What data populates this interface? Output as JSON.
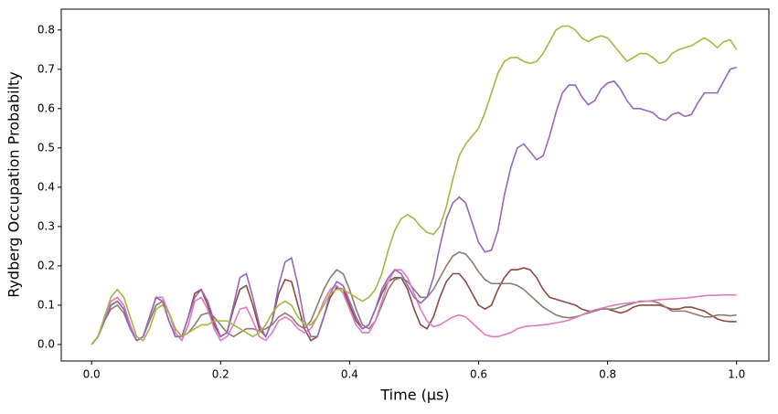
{
  "chart_data": {
    "type": "line",
    "x_label": "Time (μs)",
    "y_label": "Rydberg Occupation Probabilty",
    "xlim": [
      -0.047,
      1.05
    ],
    "ylim": [
      -0.042,
      0.853
    ],
    "xticks": [
      {
        "value": 0,
        "label": "0.0"
      },
      {
        "value": 0.2,
        "label": "0.2"
      },
      {
        "value": 0.4,
        "label": "0.4"
      },
      {
        "value": 0.6,
        "label": "0.6"
      },
      {
        "value": 0.8,
        "label": "0.8"
      },
      {
        "value": 1,
        "label": "1.0"
      }
    ],
    "yticks": [
      {
        "value": 0,
        "label": "0.0"
      },
      {
        "value": 0.1,
        "label": "0.1"
      },
      {
        "value": 0.2,
        "label": "0.2"
      },
      {
        "value": 0.3,
        "label": "0.3"
      },
      {
        "value": 0.4,
        "label": "0.4"
      },
      {
        "value": 0.5,
        "label": "0.5"
      },
      {
        "value": 0.6,
        "label": "0.6"
      },
      {
        "value": 0.7,
        "label": "0.7"
      },
      {
        "value": 0.8,
        "label": "0.8"
      }
    ],
    "grid": false,
    "x": [
      0,
      0.01,
      0.02,
      0.03,
      0.04,
      0.05,
      0.06,
      0.07,
      0.08,
      0.09,
      0.1,
      0.11,
      0.12,
      0.13,
      0.14,
      0.15,
      0.16,
      0.17,
      0.18,
      0.19,
      0.2,
      0.21,
      0.22,
      0.23,
      0.24,
      0.25,
      0.26,
      0.27,
      0.28,
      0.29,
      0.3,
      0.31,
      0.32,
      0.33,
      0.34,
      0.35,
      0.36,
      0.37,
      0.38,
      0.39,
      0.4,
      0.41,
      0.42,
      0.43,
      0.44,
      0.45,
      0.46,
      0.47,
      0.48,
      0.49,
      0.5,
      0.51,
      0.52,
      0.53,
      0.54,
      0.55,
      0.56,
      0.57,
      0.58,
      0.59,
      0.6,
      0.61,
      0.62,
      0.63,
      0.64,
      0.65,
      0.66,
      0.67,
      0.68,
      0.69,
      0.7,
      0.71,
      0.72,
      0.73,
      0.74,
      0.75,
      0.76,
      0.77,
      0.78,
      0.79,
      0.8,
      0.81,
      0.82,
      0.83,
      0.84,
      0.85,
      0.86,
      0.87,
      0.88,
      0.89,
      0.9,
      0.91,
      0.92,
      0.93,
      0.94,
      0.95,
      0.96,
      0.97,
      0.98,
      0.99,
      1.0
    ],
    "series": [
      {
        "color": "#8c4a3f",
        "values": [
          0,
          0.02,
          0.06,
          0.1,
          0.11,
          0.09,
          0.04,
          0.01,
          0.02,
          0.07,
          0.12,
          0.11,
          0.06,
          0.02,
          0.02,
          0.07,
          0.13,
          0.14,
          0.1,
          0.05,
          0.02,
          0.03,
          0.09,
          0.14,
          0.15,
          0.1,
          0.04,
          0.02,
          0.06,
          0.13,
          0.165,
          0.16,
          0.1,
          0.04,
          0.01,
          0.02,
          0.07,
          0.12,
          0.145,
          0.14,
          0.1,
          0.06,
          0.04,
          0.05,
          0.09,
          0.13,
          0.16,
          0.17,
          0.17,
          0.14,
          0.09,
          0.05,
          0.04,
          0.07,
          0.12,
          0.16,
          0.18,
          0.18,
          0.16,
          0.13,
          0.1,
          0.09,
          0.1,
          0.14,
          0.17,
          0.19,
          0.19,
          0.195,
          0.19,
          0.17,
          0.14,
          0.12,
          0.115,
          0.11,
          0.105,
          0.1,
          0.09,
          0.085,
          0.085,
          0.09,
          0.09,
          0.085,
          0.08,
          0.085,
          0.095,
          0.1,
          0.1,
          0.1,
          0.1,
          0.095,
          0.09,
          0.09,
          0.095,
          0.095,
          0.09,
          0.085,
          0.075,
          0.065,
          0.06,
          0.058,
          0.058
        ]
      },
      {
        "color": "#8c7b6e",
        "values": [
          0,
          0.02,
          0.06,
          0.09,
          0.1,
          0.08,
          0.04,
          0.01,
          0.02,
          0.06,
          0.1,
          0.11,
          0.08,
          0.04,
          0.02,
          0.03,
          0.05,
          0.075,
          0.08,
          0.07,
          0.05,
          0.03,
          0.02,
          0.03,
          0.04,
          0.04,
          0.035,
          0.04,
          0.05,
          0.07,
          0.08,
          0.07,
          0.05,
          0.04,
          0.06,
          0.1,
          0.14,
          0.17,
          0.19,
          0.18,
          0.14,
          0.09,
          0.05,
          0.04,
          0.06,
          0.1,
          0.14,
          0.165,
          0.17,
          0.16,
          0.14,
          0.12,
          0.12,
          0.14,
          0.17,
          0.2,
          0.225,
          0.235,
          0.23,
          0.21,
          0.185,
          0.165,
          0.155,
          0.155,
          0.155,
          0.155,
          0.15,
          0.14,
          0.125,
          0.11,
          0.095,
          0.085,
          0.075,
          0.07,
          0.068,
          0.07,
          0.075,
          0.08,
          0.085,
          0.09,
          0.09,
          0.09,
          0.095,
          0.1,
          0.105,
          0.11,
          0.11,
          0.11,
          0.105,
          0.095,
          0.085,
          0.085,
          0.085,
          0.08,
          0.075,
          0.07,
          0.07,
          0.075,
          0.075,
          0.073,
          0.075
        ]
      },
      {
        "color": "#e07ac0",
        "values": [
          0,
          0.02,
          0.07,
          0.11,
          0.12,
          0.1,
          0.05,
          0.01,
          0.02,
          0.07,
          0.12,
          0.12,
          0.08,
          0.03,
          0.01,
          0.05,
          0.11,
          0.12,
          0.09,
          0.04,
          0.01,
          0.02,
          0.05,
          0.09,
          0.095,
          0.06,
          0.02,
          0.01,
          0.03,
          0.06,
          0.07,
          0.06,
          0.04,
          0.03,
          0.04,
          0.07,
          0.11,
          0.14,
          0.15,
          0.13,
          0.09,
          0.05,
          0.03,
          0.03,
          0.06,
          0.11,
          0.16,
          0.19,
          0.19,
          0.17,
          0.13,
          0.09,
          0.06,
          0.045,
          0.05,
          0.06,
          0.07,
          0.075,
          0.07,
          0.055,
          0.04,
          0.025,
          0.02,
          0.02,
          0.025,
          0.03,
          0.04,
          0.045,
          0.047,
          0.048,
          0.05,
          0.052,
          0.055,
          0.058,
          0.062,
          0.068,
          0.075,
          0.082,
          0.088,
          0.092,
          0.096,
          0.1,
          0.103,
          0.105,
          0.107,
          0.108,
          0.11,
          0.112,
          0.114,
          0.115,
          0.116,
          0.117,
          0.118,
          0.12,
          0.122,
          0.124,
          0.125,
          0.125,
          0.126,
          0.126,
          0.126
        ]
      },
      {
        "color": "#9467bd",
        "values": [
          0,
          0.02,
          0.06,
          0.1,
          0.11,
          0.09,
          0.04,
          0.01,
          0.02,
          0.07,
          0.12,
          0.11,
          0.06,
          0.02,
          0.02,
          0.07,
          0.12,
          0.14,
          0.11,
          0.06,
          0.02,
          0.03,
          0.1,
          0.17,
          0.18,
          0.12,
          0.05,
          0.02,
          0.06,
          0.15,
          0.21,
          0.22,
          0.15,
          0.06,
          0.02,
          0.02,
          0.07,
          0.13,
          0.16,
          0.15,
          0.11,
          0.07,
          0.04,
          0.05,
          0.09,
          0.14,
          0.17,
          0.19,
          0.18,
          0.15,
          0.12,
          0.105,
          0.12,
          0.17,
          0.25,
          0.32,
          0.36,
          0.375,
          0.36,
          0.31,
          0.26,
          0.235,
          0.24,
          0.29,
          0.38,
          0.45,
          0.5,
          0.51,
          0.49,
          0.47,
          0.48,
          0.53,
          0.59,
          0.64,
          0.66,
          0.66,
          0.63,
          0.61,
          0.62,
          0.65,
          0.665,
          0.67,
          0.65,
          0.62,
          0.6,
          0.6,
          0.595,
          0.59,
          0.575,
          0.57,
          0.585,
          0.59,
          0.58,
          0.585,
          0.615,
          0.64,
          0.64,
          0.64,
          0.67,
          0.7,
          0.705
        ]
      },
      {
        "color": "#a8b540",
        "values": [
          0,
          0.02,
          0.07,
          0.12,
          0.14,
          0.12,
          0.07,
          0.02,
          0.01,
          0.04,
          0.09,
          0.1,
          0.08,
          0.04,
          0.02,
          0.03,
          0.04,
          0.05,
          0.05,
          0.06,
          0.06,
          0.06,
          0.05,
          0.04,
          0.03,
          0.02,
          0.03,
          0.05,
          0.08,
          0.1,
          0.11,
          0.1,
          0.07,
          0.05,
          0.05,
          0.07,
          0.1,
          0.13,
          0.14,
          0.14,
          0.13,
          0.12,
          0.11,
          0.12,
          0.14,
          0.18,
          0.24,
          0.29,
          0.32,
          0.33,
          0.32,
          0.3,
          0.285,
          0.28,
          0.3,
          0.35,
          0.42,
          0.48,
          0.51,
          0.53,
          0.55,
          0.59,
          0.64,
          0.69,
          0.72,
          0.73,
          0.73,
          0.72,
          0.715,
          0.72,
          0.74,
          0.77,
          0.8,
          0.81,
          0.81,
          0.8,
          0.78,
          0.77,
          0.78,
          0.785,
          0.78,
          0.76,
          0.74,
          0.72,
          0.73,
          0.74,
          0.74,
          0.73,
          0.715,
          0.72,
          0.74,
          0.75,
          0.755,
          0.76,
          0.77,
          0.78,
          0.77,
          0.755,
          0.77,
          0.775,
          0.75
        ]
      }
    ]
  }
}
